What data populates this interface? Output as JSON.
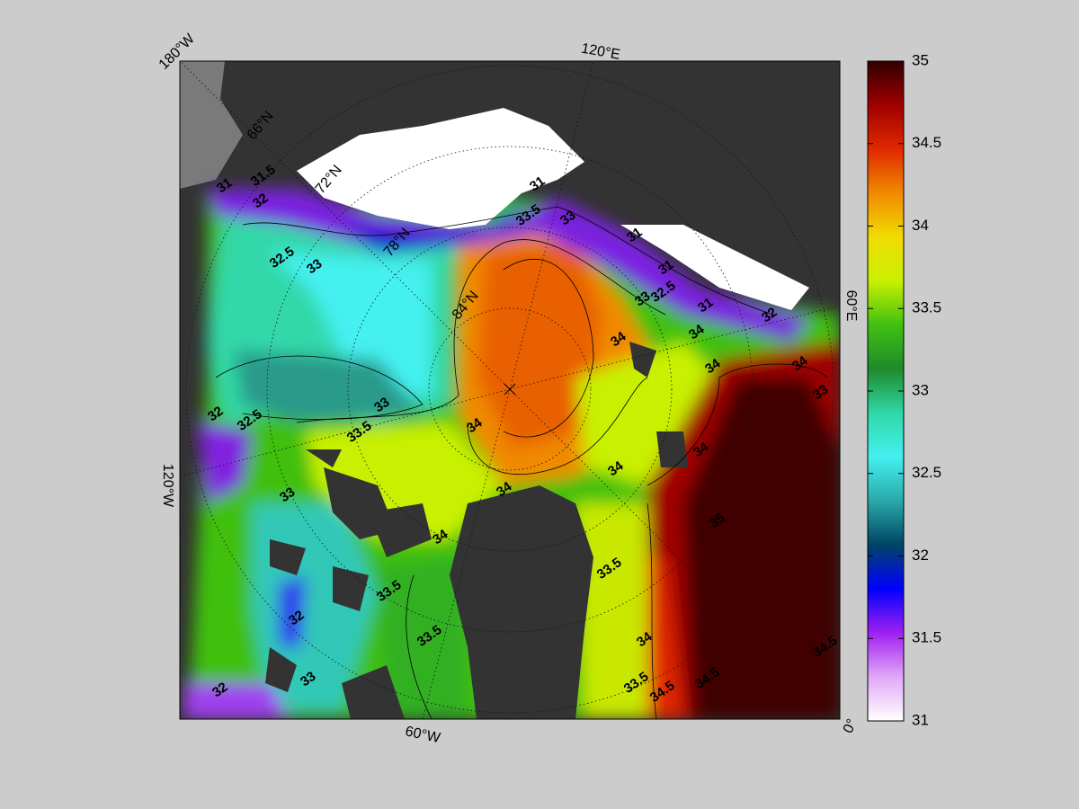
{
  "map": {
    "longitude_labels": [
      "180°W",
      "120°E",
      "60°E",
      "0°",
      "60°W",
      "120°W"
    ],
    "latitude_labels": [
      "66°N",
      "72°N",
      "78°N",
      "84°N"
    ],
    "contour_labels": [
      31,
      31.5,
      32,
      32.5,
      33,
      33,
      33.5,
      34,
      34,
      34,
      33.5,
      33.5,
      33,
      32,
      32,
      33,
      32.5,
      32,
      31,
      33.5,
      33,
      31,
      31,
      32.5,
      33,
      31,
      32,
      34,
      34,
      34,
      34,
      33,
      34,
      34,
      33.5,
      34,
      33.5,
      34.5,
      34.5,
      34.5,
      35
    ],
    "colorbar": {
      "lim": [
        31,
        35
      ],
      "ticks": [
        31,
        31.5,
        32,
        32.5,
        33,
        33.5,
        34,
        34.5,
        35
      ],
      "colors": [
        "#ffffff",
        "#e0a8f8",
        "#a020f0",
        "#0000ff",
        "#004466",
        "#2aa8a8",
        "#44f0f0",
        "#30d8a8",
        "#1e8a2a",
        "#40c010",
        "#c8f000",
        "#f0dc00",
        "#f08a00",
        "#e02800",
        "#a00000",
        "#300000"
      ]
    }
  }
}
